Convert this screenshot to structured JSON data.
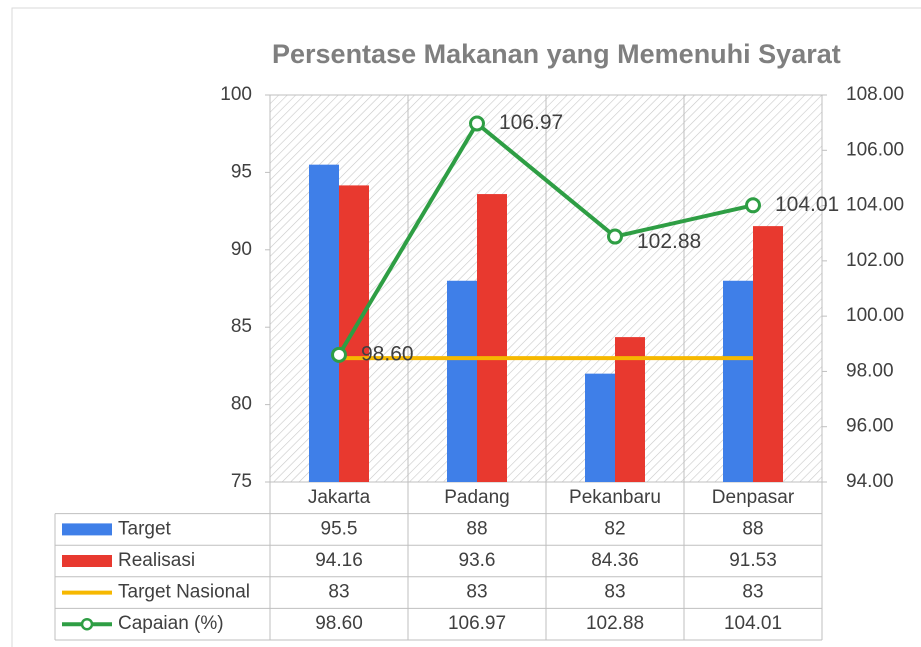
{
  "chart_data": {
    "type": "bar",
    "title": "Persentase Makanan yang Memenuhi Syarat",
    "categories": [
      "Jakarta",
      "Padang",
      "Pekanbaru",
      "Denpasar"
    ],
    "series": [
      {
        "name": "Target",
        "color": "#3f7fe8",
        "type": "bar",
        "values": [
          95.5,
          88,
          82,
          88
        ]
      },
      {
        "name": "Realisasi",
        "color": "#e8392f",
        "type": "bar",
        "values": [
          94.16,
          93.6,
          84.36,
          91.53
        ]
      },
      {
        "name": "Target Nasional",
        "color": "#f6b800",
        "type": "line",
        "values": [
          83,
          83,
          83,
          83
        ]
      },
      {
        "name": "Capaian (%)",
        "color": "#2e9e44",
        "type": "line",
        "axis": "y2",
        "marker": true,
        "values": [
          98.6,
          106.97,
          102.88,
          104.01
        ],
        "value_labels": [
          "98.60",
          "106.97",
          "102.88",
          "104.01"
        ]
      }
    ],
    "ylim": [
      75,
      100
    ],
    "yticks": [
      75,
      80,
      85,
      90,
      95,
      100
    ],
    "y2lim": [
      94,
      108
    ],
    "y2ticks": [
      {
        "value": 94,
        "label": "94.00"
      },
      {
        "value": 96,
        "label": "96.00"
      },
      {
        "value": 98,
        "label": "98.00"
      },
      {
        "value": 100,
        "label": "100.00"
      },
      {
        "value": 102,
        "label": "102.00"
      },
      {
        "value": 104,
        "label": "104.00"
      },
      {
        "value": 106,
        "label": "106.00"
      },
      {
        "value": 108,
        "label": "108.00"
      }
    ],
    "data_table": true
  }
}
